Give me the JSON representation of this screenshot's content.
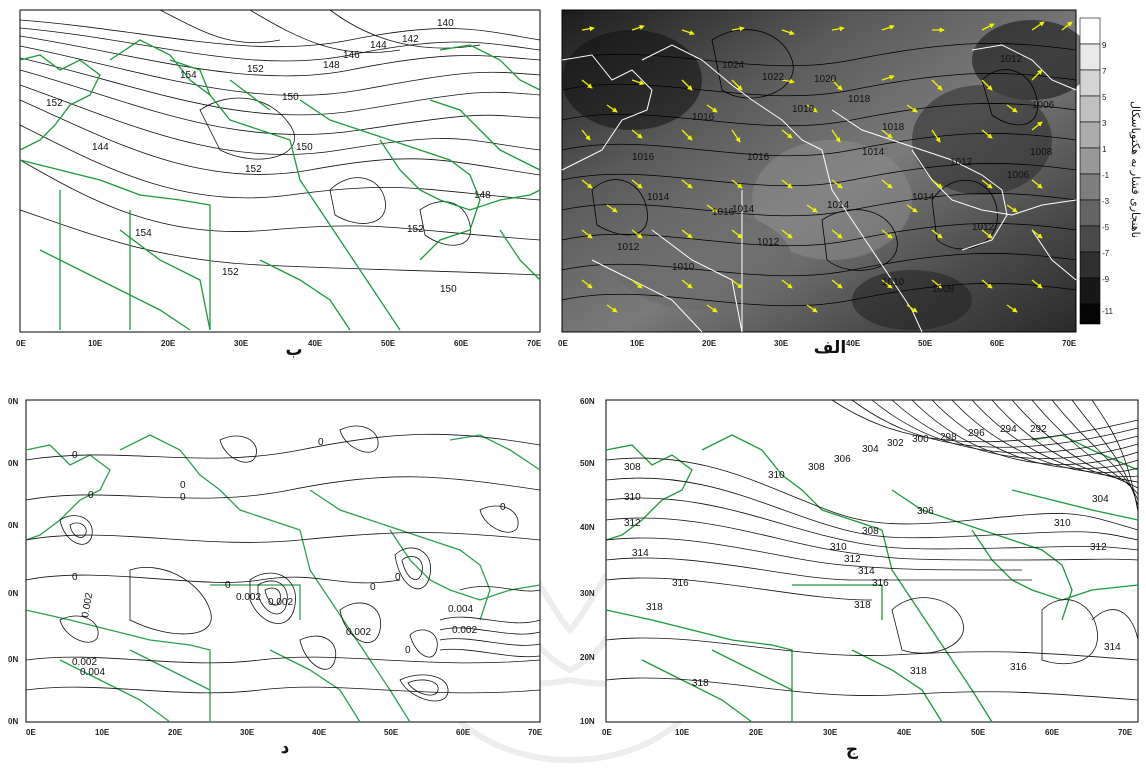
{
  "panels": {
    "alef": {
      "caption": "الف",
      "x_ticks": [
        "0E",
        "10E",
        "20E",
        "30E",
        "40E",
        "50E",
        "60E",
        "70E"
      ],
      "contour_labels": [
        "1024",
        "1022",
        "1020",
        "1018",
        "1016",
        "1016",
        "1014",
        "1014",
        "1012",
        "1012",
        "1012",
        "1012",
        "1010",
        "1010",
        "1008",
        "1008",
        "1006",
        "1006",
        "1018",
        "1016",
        "1014",
        "1016",
        "1018",
        "1014",
        "1014",
        "1012"
      ],
      "colorbar": {
        "ticks": [
          "9",
          "7",
          "5",
          "3",
          "1",
          "-1",
          "-3",
          "-5",
          "-7",
          "-9",
          "-11"
        ],
        "title": "ناهنجاری فشار به هکتوپاسکال"
      },
      "wind_vector_color": "#f2f200",
      "border_color": "#ffffff"
    },
    "be": {
      "caption": "ب",
      "x_ticks": [
        "0E",
        "10E",
        "20E",
        "30E",
        "40E",
        "50E",
        "60E",
        "70E"
      ],
      "contour_labels": [
        "154",
        "152",
        "152",
        "150",
        "148",
        "146",
        "144",
        "142",
        "140",
        "144",
        "150",
        "152",
        "154",
        "152",
        "150",
        "148",
        "152"
      ],
      "border_color": "#1a9a3a"
    },
    "jim": {
      "caption": "ج",
      "x_ticks": [
        "0E",
        "10E",
        "20E",
        "30E",
        "40E",
        "50E",
        "60E",
        "70E"
      ],
      "y_ticks": [
        "60N",
        "50N",
        "40N",
        "30N",
        "20N",
        "10N"
      ],
      "contour_labels": [
        "308",
        "310",
        "312",
        "314",
        "316",
        "318",
        "318",
        "310",
        "308",
        "306",
        "304",
        "302",
        "300",
        "298",
        "296",
        "294",
        "292",
        "306",
        "308",
        "310",
        "312",
        "314",
        "316",
        "318",
        "304",
        "310",
        "312",
        "314",
        "316",
        "318"
      ],
      "border_color": "#1a9a3a"
    },
    "dal": {
      "caption": "د",
      "x_ticks": [
        "0E",
        "10E",
        "20E",
        "30E",
        "40E",
        "50E",
        "60E",
        "70E"
      ],
      "y_ticks": [
        "0N",
        "0N",
        "0N",
        "0N",
        "0N",
        "0N"
      ],
      "contour_labels": [
        "0",
        "0",
        "0",
        "0",
        "0.002",
        "0.002",
        "0.004",
        "0",
        "0",
        "0",
        "0.002",
        "0.002",
        "0.002",
        "0.002",
        "0",
        "0",
        "0",
        "0.004",
        "0"
      ],
      "border_color": "#1a9a3a"
    }
  }
}
